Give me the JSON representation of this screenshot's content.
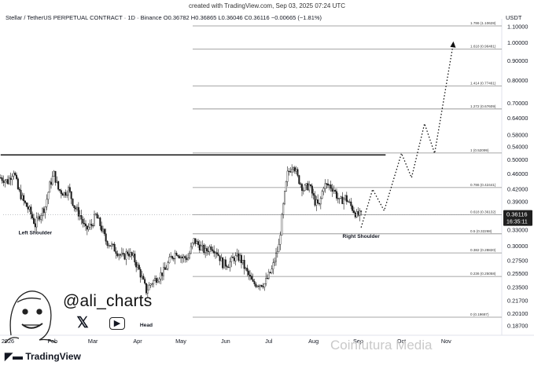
{
  "header": {
    "note": "created with TradingView.com, Sep 03, 2025 07:24 UTC",
    "symbol_line": "Stellar / TetherUS PERPETUAL CONTRACT · 1D · Binance  O0.36782  H0.36865  L0.36046  C0.36116  −0.00665 (−1.81%)",
    "currency": "USDT"
  },
  "branding": {
    "handle": "@ali_charts",
    "logo_text": "TradingView",
    "watermark": "Coinfutura Media",
    "icons": [
      "avatar-caricature",
      "x-logo-icon",
      "youtube-play-icon",
      "tradingview-logo-icon"
    ]
  },
  "colors": {
    "candle": "#1a1a1a",
    "fib_line": "#8a8a8a",
    "resistance": "#000000",
    "price_tag": "#1f1f1f"
  },
  "chart_data": {
    "type": "candlestick",
    "scale": "log",
    "y_ticks": [
      "1.10000",
      "1.00000",
      "0.90000",
      "0.80000",
      "0.70000",
      "0.64000",
      "0.58000",
      "0.54000",
      "0.50000",
      "0.46000",
      "0.42000",
      "0.39000",
      "0.36000",
      "0.33000",
      "0.30000",
      "0.27500",
      "0.25500",
      "0.23500",
      "0.21700",
      "0.20100",
      "0.18700"
    ],
    "x_ticks": [
      {
        "label": "2026",
        "date": "2025-01-01"
      },
      {
        "label": "Feb",
        "date": "2025-02-01"
      },
      {
        "label": "Mar",
        "date": "2025-03-01"
      },
      {
        "label": "Apr",
        "date": "2025-04-01"
      },
      {
        "label": "May",
        "date": "2025-05-01"
      },
      {
        "label": "Jun",
        "date": "2025-06-01"
      },
      {
        "label": "Jul",
        "date": "2025-07-01"
      },
      {
        "label": "Aug",
        "date": "2025-08-01"
      },
      {
        "label": "Sep",
        "date": "2025-09-01"
      },
      {
        "label": "Oct",
        "date": "2025-10-01"
      },
      {
        "label": "Nov",
        "date": "2025-11-01"
      }
    ],
    "fib_levels": [
      {
        "label": "1.786 (1.10628)",
        "value": 1.10628
      },
      {
        "label": "1.618 (0.96481)",
        "value": 0.96481
      },
      {
        "label": "1.414 (0.77461)",
        "value": 0.77461
      },
      {
        "label": "1.272 (0.67609)",
        "value": 0.67609
      },
      {
        "label": "1 (0.52099)",
        "value": 0.52099
      },
      {
        "label": "0.786 (0.42441)",
        "value": 0.42441
      },
      {
        "label": "0.618 (0.36132)",
        "value": 0.36132
      },
      {
        "label": "0.5 (0.32268)",
        "value": 0.32268
      },
      {
        "label": "0.382 (0.28820)",
        "value": 0.2882
      },
      {
        "label": "0.236 (0.25058)",
        "value": 0.25058
      },
      {
        "label": "0 (0.19687)",
        "value": 0.19687
      }
    ],
    "resistance": {
      "value": 0.515,
      "start": "2024-12-27",
      "end": "2025-09-20"
    },
    "current_price": {
      "value": "0.36116",
      "countdown": "16:35:11"
    },
    "annotations": [
      {
        "text": "Left Shoulder",
        "date": "2025-01-20",
        "price": 0.325
      },
      {
        "text": "Head",
        "date": "2025-04-07",
        "price": 0.188
      },
      {
        "text": "Right Shoulder",
        "date": "2025-09-03",
        "price": 0.318
      }
    ],
    "close_path": [
      [
        "2024-12-27",
        0.45
      ],
      [
        "2025-01-01",
        0.44
      ],
      [
        "2025-01-05",
        0.47
      ],
      [
        "2025-01-08",
        0.42
      ],
      [
        "2025-01-12",
        0.39
      ],
      [
        "2025-01-16",
        0.37
      ],
      [
        "2025-01-20",
        0.34
      ],
      [
        "2025-01-23",
        0.36
      ],
      [
        "2025-01-27",
        0.38
      ],
      [
        "2025-01-30",
        0.43
      ],
      [
        "2025-02-02",
        0.46
      ],
      [
        "2025-02-05",
        0.42
      ],
      [
        "2025-02-09",
        0.41
      ],
      [
        "2025-02-12",
        0.42
      ],
      [
        "2025-02-16",
        0.38
      ],
      [
        "2025-02-20",
        0.36
      ],
      [
        "2025-02-24",
        0.33
      ],
      [
        "2025-02-28",
        0.34
      ],
      [
        "2025-03-03",
        0.36
      ],
      [
        "2025-03-06",
        0.34
      ],
      [
        "2025-03-10",
        0.31
      ],
      [
        "2025-03-14",
        0.3
      ],
      [
        "2025-03-18",
        0.29
      ],
      [
        "2025-03-22",
        0.28
      ],
      [
        "2025-03-25",
        0.29
      ],
      [
        "2025-03-29",
        0.28
      ],
      [
        "2025-04-02",
        0.26
      ],
      [
        "2025-04-07",
        0.23
      ],
      [
        "2025-04-10",
        0.24
      ],
      [
        "2025-04-15",
        0.25
      ],
      [
        "2025-04-20",
        0.26
      ],
      [
        "2025-04-24",
        0.28
      ],
      [
        "2025-04-28",
        0.29
      ],
      [
        "2025-05-02",
        0.28
      ],
      [
        "2025-05-06",
        0.28
      ],
      [
        "2025-05-10",
        0.31
      ],
      [
        "2025-05-14",
        0.3
      ],
      [
        "2025-05-18",
        0.29
      ],
      [
        "2025-05-22",
        0.3
      ],
      [
        "2025-05-26",
        0.29
      ],
      [
        "2025-05-30",
        0.27
      ],
      [
        "2025-06-03",
        0.27
      ],
      [
        "2025-06-07",
        0.28
      ],
      [
        "2025-06-11",
        0.28
      ],
      [
        "2025-06-15",
        0.26
      ],
      [
        "2025-06-20",
        0.24
      ],
      [
        "2025-06-24",
        0.24
      ],
      [
        "2025-06-28",
        0.24
      ],
      [
        "2025-07-03",
        0.26
      ],
      [
        "2025-07-08",
        0.3
      ],
      [
        "2025-07-11",
        0.38
      ],
      [
        "2025-07-14",
        0.46
      ],
      [
        "2025-07-18",
        0.49
      ],
      [
        "2025-07-21",
        0.45
      ],
      [
        "2025-07-25",
        0.42
      ],
      [
        "2025-07-29",
        0.43
      ],
      [
        "2025-08-02",
        0.39
      ],
      [
        "2025-08-05",
        0.38
      ],
      [
        "2025-08-08",
        0.43
      ],
      [
        "2025-08-12",
        0.43
      ],
      [
        "2025-08-15",
        0.42
      ],
      [
        "2025-08-19",
        0.39
      ],
      [
        "2025-08-23",
        0.4
      ],
      [
        "2025-08-27",
        0.38
      ],
      [
        "2025-08-31",
        0.36
      ],
      [
        "2025-09-03",
        0.361
      ]
    ],
    "projection": [
      [
        "2025-09-03",
        0.335
      ],
      [
        "2025-09-11",
        0.42
      ],
      [
        "2025-09-19",
        0.37
      ],
      [
        "2025-10-01",
        0.52
      ],
      [
        "2025-10-08",
        0.45
      ],
      [
        "2025-10-17",
        0.62
      ],
      [
        "2025-10-24",
        0.52
      ],
      [
        "2025-11-06",
        1.0
      ]
    ]
  }
}
